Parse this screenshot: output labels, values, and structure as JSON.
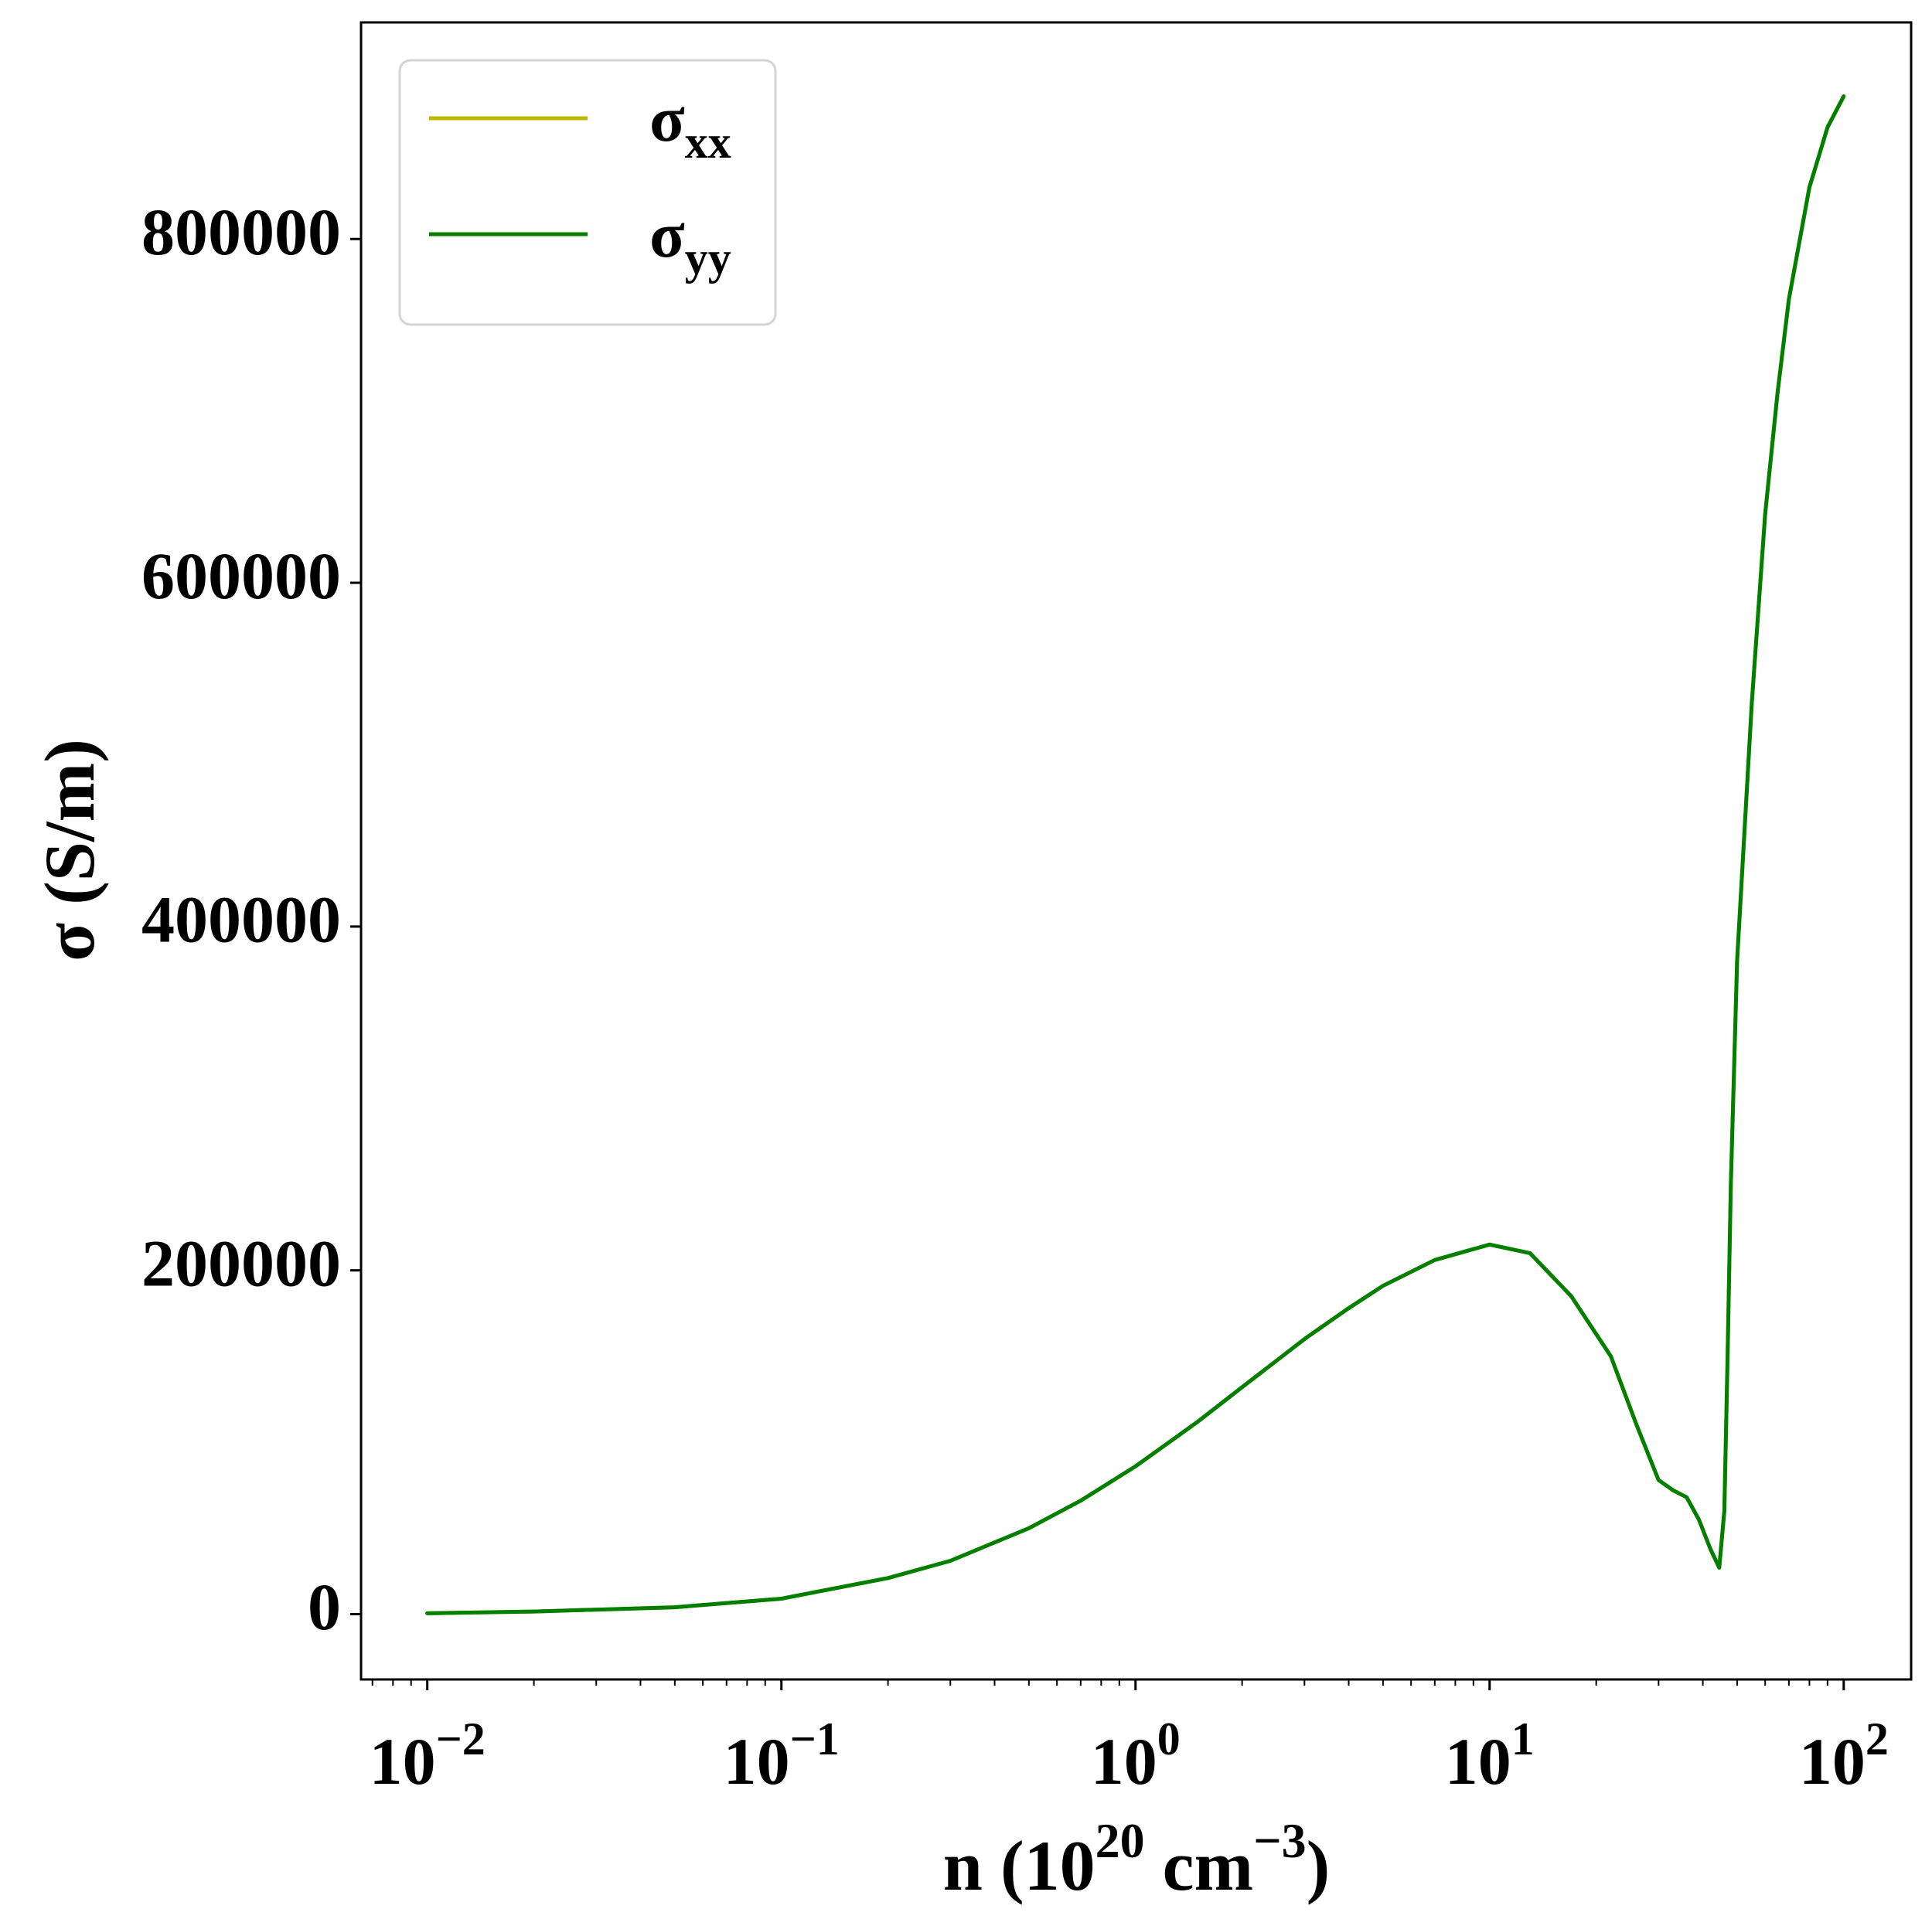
{
  "chart_data": {
    "type": "line",
    "title": "",
    "xlabel": {
      "base": "n (10",
      "sup1": "20",
      "mid": " cm",
      "sup2": "−3",
      "end": ")"
    },
    "ylabel": "σ (S/m)",
    "xscale": "log",
    "xlim": [
      0.0065,
      155
    ],
    "ylim": [
      -38000,
      926000
    ],
    "grid": false,
    "legend_position": "top-left",
    "y_ticks": [
      {
        "value": 0,
        "label": "0"
      },
      {
        "value": 200000,
        "label": "200000"
      },
      {
        "value": 400000,
        "label": "400000"
      },
      {
        "value": 600000,
        "label": "600000"
      },
      {
        "value": 800000,
        "label": "800000"
      }
    ],
    "x_ticks": [
      {
        "value": 0.01,
        "base": "10",
        "exp": "−2"
      },
      {
        "value": 0.1,
        "base": "10",
        "exp": "−1"
      },
      {
        "value": 1,
        "base": "10",
        "exp": "0"
      },
      {
        "value": 10,
        "base": "10",
        "exp": "1"
      },
      {
        "value": 100,
        "base": "10",
        "exp": "2"
      }
    ],
    "x": [
      0.01,
      0.02,
      0.05,
      0.1,
      0.2,
      0.3,
      0.5,
      0.7,
      1.0,
      1.5,
      2.0,
      3.0,
      4.0,
      5.0,
      7.0,
      10.0,
      13.0,
      17.0,
      22.0,
      26.0,
      30.0,
      33.0,
      36.0,
      39.0,
      42.0,
      44.5,
      46.0,
      47.0,
      48.0,
      50.0,
      55.0,
      60.0,
      65.0,
      70.0,
      80.0,
      90.0,
      100.0
    ],
    "series": [
      {
        "name": {
          "base": "σ",
          "sub": "xx"
        },
        "color": "#bfb800",
        "values": [
          500,
          1500,
          4000,
          9000,
          21000,
          31000,
          50000,
          66000,
          86000,
          112000,
          132000,
          160000,
          178000,
          191000,
          206000,
          215000,
          210000,
          185000,
          150000,
          110000,
          78000,
          72000,
          68000,
          55000,
          38000,
          27000,
          60000,
          150000,
          250000,
          380000,
          530000,
          640000,
          710000,
          765000,
          830000,
          865000,
          883000
        ]
      },
      {
        "name": {
          "base": "σ",
          "sub": "yy"
        },
        "color": "#007f00",
        "values": [
          500,
          1500,
          4000,
          9000,
          21000,
          31000,
          50000,
          66000,
          86000,
          112000,
          132000,
          160000,
          178000,
          191000,
          206000,
          215000,
          210000,
          185000,
          150000,
          110000,
          78000,
          72000,
          68000,
          55000,
          38000,
          27000,
          60000,
          150000,
          250000,
          380000,
          530000,
          640000,
          710000,
          765000,
          830000,
          865000,
          883000
        ]
      }
    ]
  }
}
